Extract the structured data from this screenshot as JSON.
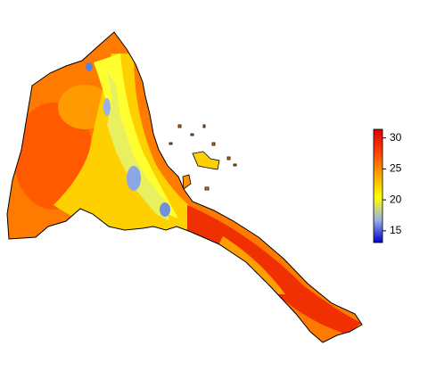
{
  "map": {
    "colorbar": {
      "lim": [
        13.1,
        31.4
      ],
      "ticks": [
        15,
        20,
        25,
        30
      ],
      "colors": [
        "#0000cc",
        "#9ab0e8",
        "#ffff00",
        "#ffa500",
        "#ff4000",
        "#e00000"
      ]
    }
  }
}
